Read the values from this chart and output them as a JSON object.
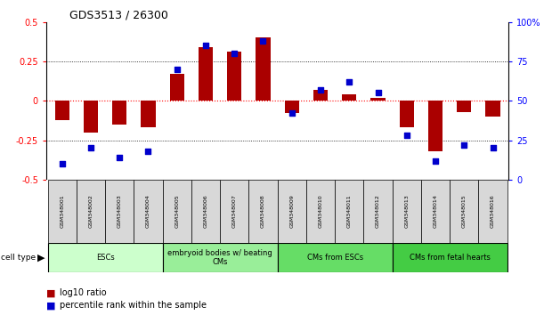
{
  "title": "GDS3513 / 26300",
  "samples": [
    "GSM348001",
    "GSM348002",
    "GSM348003",
    "GSM348004",
    "GSM348005",
    "GSM348006",
    "GSM348007",
    "GSM348008",
    "GSM348009",
    "GSM348010",
    "GSM348011",
    "GSM348012",
    "GSM348013",
    "GSM348014",
    "GSM348015",
    "GSM348016"
  ],
  "log10_ratio": [
    -0.12,
    -0.2,
    -0.15,
    -0.17,
    0.17,
    0.34,
    0.31,
    0.4,
    -0.08,
    0.07,
    0.04,
    0.02,
    -0.17,
    -0.32,
    -0.07,
    -0.1
  ],
  "percentile_rank": [
    10,
    20,
    14,
    18,
    70,
    85,
    80,
    88,
    42,
    57,
    62,
    55,
    28,
    12,
    22,
    20
  ],
  "cell_types": [
    {
      "label": "ESCs",
      "start": 0,
      "end": 4,
      "color": "#ccffcc"
    },
    {
      "label": "embryoid bodies w/ beating\nCMs",
      "start": 4,
      "end": 8,
      "color": "#99ee99"
    },
    {
      "label": "CMs from ESCs",
      "start": 8,
      "end": 12,
      "color": "#66dd66"
    },
    {
      "label": "CMs from fetal hearts",
      "start": 12,
      "end": 16,
      "color": "#44cc44"
    }
  ],
  "bar_color": "#aa0000",
  "dot_color": "#0000cc",
  "ylim_left": [
    -0.5,
    0.5
  ],
  "ylim_right": [
    0,
    100
  ],
  "yticks_left": [
    -0.5,
    -0.25,
    0,
    0.25,
    0.5
  ],
  "yticks_right": [
    0,
    25,
    50,
    75,
    100
  ],
  "ytick_labels_right": [
    "0",
    "25",
    "50",
    "75",
    "100%"
  ],
  "bar_width": 0.5,
  "dot_size": 25,
  "legend_items": [
    {
      "color": "#aa0000",
      "label": "log10 ratio"
    },
    {
      "color": "#0000cc",
      "label": "percentile rank within the sample"
    }
  ]
}
